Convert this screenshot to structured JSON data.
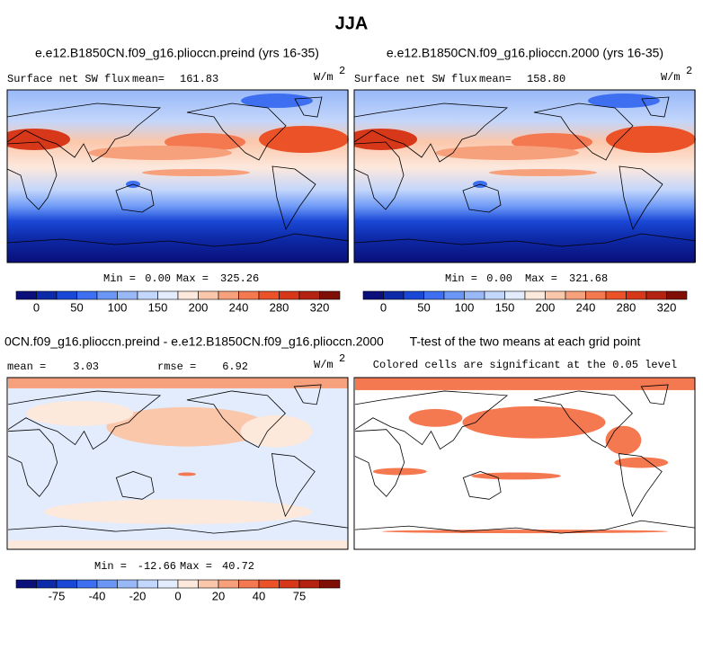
{
  "title": "JJA",
  "panels": [
    {
      "title": "e.e12.B1850CN.f09_g16.plioccn.preind (yrs 16-35)",
      "left_label": "Surface net SW flux",
      "mean_label": "mean=",
      "mean": "161.83",
      "units": "W/m",
      "units_exp": "2",
      "min_label": "Min =",
      "min": "0.00",
      "max_label": "Max =",
      "max": "325.26"
    },
    {
      "title": "e.e12.B1850CN.f09_g16.plioccn.2000 (yrs 16-35)",
      "left_label": "Surface net SW flux",
      "mean_label": "mean=",
      "mean": "158.80",
      "units": "W/m",
      "units_exp": "2",
      "min_label": "Min =",
      "min": "0.00",
      "max_label": "Max =",
      "max": "321.68"
    },
    {
      "title": "0CN.f09_g16.plioccn.preind - e.e12.B1850CN.f09_g16.plioccn.2000",
      "mean_label": "mean =",
      "mean": "3.03",
      "rmse_label": "rmse =",
      "rmse": "6.92",
      "units": "W/m",
      "units_exp": "2",
      "min_label": "Min =",
      "min": "-12.66",
      "max_label": "Max =",
      "max": "40.72"
    },
    {
      "title": "T-test of the two means at each grid point",
      "note": "Colored cells are significant at the 0.05 level"
    }
  ],
  "colorbars": [
    {
      "colors": [
        "#0a0f7a",
        "#0d2aa8",
        "#1a48d6",
        "#3d6ff0",
        "#6a96f5",
        "#98b8f8",
        "#c3d6fb",
        "#e2ecfd",
        "#fde8dc",
        "#fbc7ab",
        "#f7a07c",
        "#f47850",
        "#ec5228",
        "#d8381a",
        "#b42212",
        "#7f0e06"
      ],
      "ticks": [
        0,
        50,
        100,
        150,
        200,
        240,
        280,
        320
      ]
    },
    {
      "colors": [
        "#0a0f7a",
        "#0d2aa8",
        "#1a48d6",
        "#3d6ff0",
        "#6a96f5",
        "#98b8f8",
        "#c3d6fb",
        "#e2ecfd",
        "#fde8dc",
        "#fbc7ab",
        "#f7a07c",
        "#f47850",
        "#ec5228",
        "#d8381a",
        "#b42212",
        "#7f0e06"
      ],
      "ticks": [
        0,
        50,
        100,
        150,
        200,
        240,
        280,
        320
      ]
    },
    {
      "colors": [
        "#0a0f7a",
        "#0d2aa8",
        "#1a48d6",
        "#3d6ff0",
        "#6a96f5",
        "#98b8f8",
        "#c3d6fb",
        "#e2ecfd",
        "#fde8dc",
        "#fbc7ab",
        "#f7a07c",
        "#f47850",
        "#ec5228",
        "#d8381a",
        "#b42212",
        "#7f0e06"
      ],
      "ticks": [
        -75,
        -40,
        -20,
        0,
        20,
        40,
        75
      ]
    }
  ]
}
